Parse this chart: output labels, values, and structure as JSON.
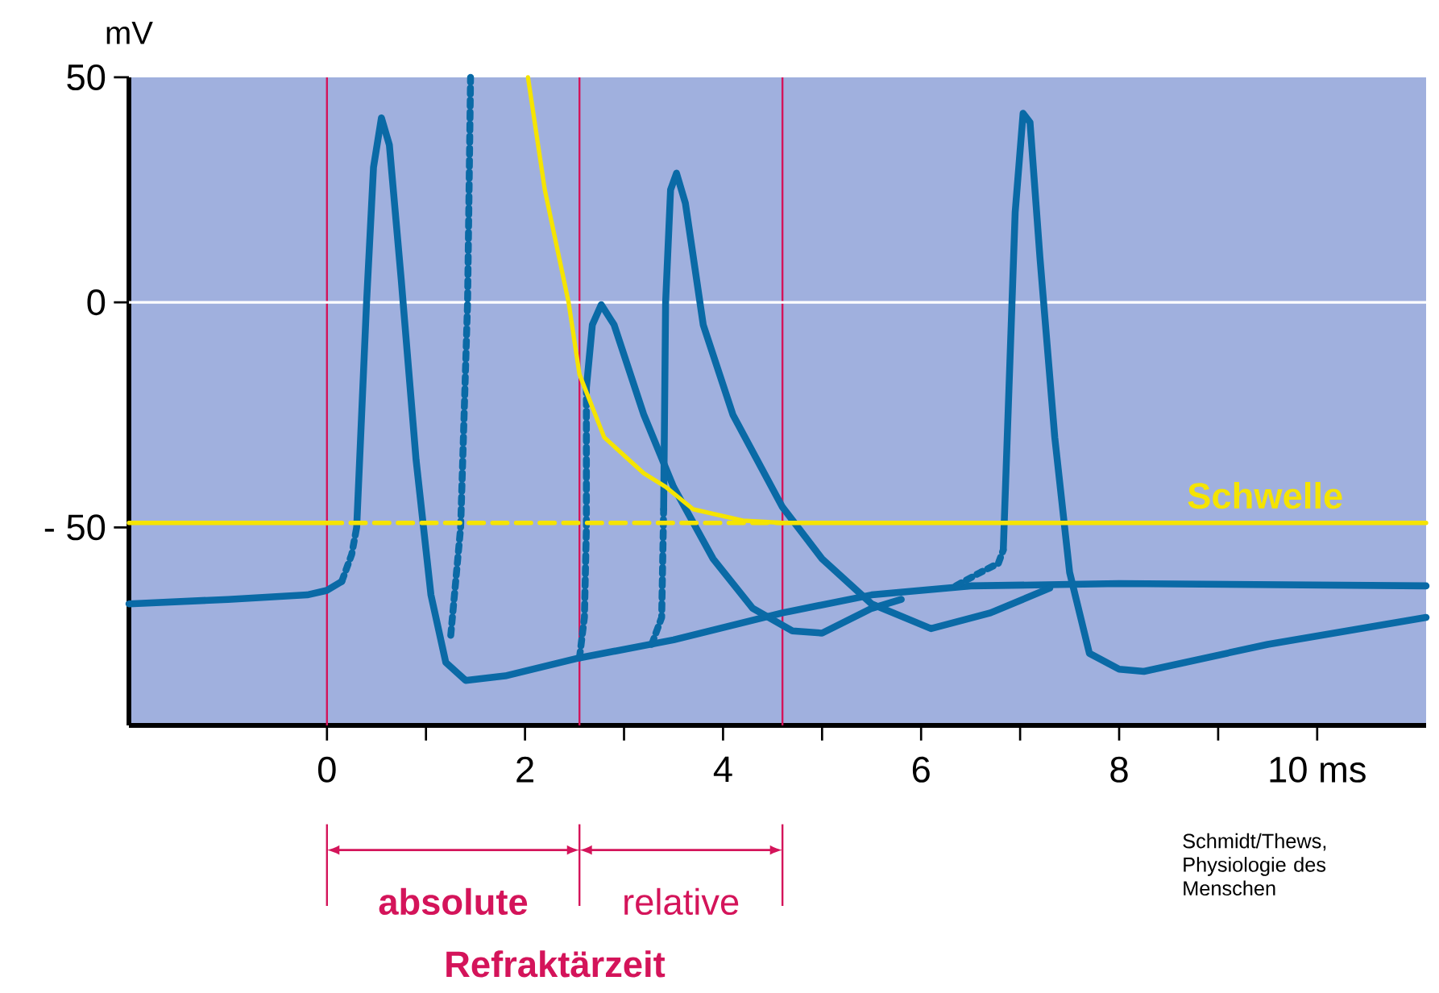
{
  "chart_data": {
    "type": "line",
    "ylabel": "mV",
    "xlim": [
      -2,
      11.1
    ],
    "ylim": [
      -94,
      50
    ],
    "xticks": [
      0,
      {
        "value": 1,
        "label": null
      },
      2,
      {
        "value": 3,
        "label": null
      },
      4,
      {
        "value": 5,
        "label": null
      },
      6,
      {
        "value": 7,
        "label": null
      },
      8,
      {
        "value": 9,
        "label": null
      },
      {
        "value": 10,
        "label": "10 ms"
      }
    ],
    "yticks": [
      50,
      0,
      {
        "value": -50,
        "label": "- 50"
      }
    ],
    "series": [
      {
        "color": "#0a6aa6",
        "line_style": "solid",
        "x": [
          -2,
          -1,
          -0.2,
          0,
          0.15
        ],
        "values": [
          -67,
          -66,
          -65,
          -64,
          -62
        ]
      },
      {
        "color": "#0a6aa6",
        "line_style": "dotted",
        "x": [
          0.15,
          0.25,
          0.3
        ],
        "values": [
          -62,
          -56,
          -50
        ]
      },
      {
        "color": "#0a6aa6",
        "line_style": "solid",
        "x": [
          0.3,
          0.4,
          0.47,
          0.55,
          0.63,
          0.75,
          0.9,
          1.05,
          1.2,
          1.4,
          1.8,
          2.55,
          3.5,
          4.6,
          5.5,
          6.5,
          8,
          11.1
        ],
        "values": [
          -50,
          0,
          30,
          41,
          35,
          5,
          -35,
          -65,
          -80,
          -84,
          -83,
          -79,
          -75,
          -69,
          -65,
          -63,
          -62.5,
          -63
        ]
      },
      {
        "color": "#0a6aa6",
        "line_style": "dotted",
        "x": [
          1.25,
          1.35,
          1.42,
          1.45
        ],
        "values": [
          -74,
          -50,
          0,
          50
        ]
      },
      {
        "color": "#0a6aa6",
        "line_style": "dotted",
        "x": [
          2.55,
          2.6,
          2.62,
          2.62
        ],
        "values": [
          -79,
          -70,
          -50,
          -19
        ]
      },
      {
        "color": "#0a6aa6",
        "line_style": "solid",
        "x": [
          2.62,
          2.68,
          2.77,
          2.9,
          3.2,
          3.5,
          3.9,
          4.3,
          4.7,
          5.0,
          5.5,
          5.8
        ],
        "values": [
          -19,
          -5,
          -0.5,
          -5,
          -25,
          -41,
          -57,
          -68,
          -73,
          -73.5,
          -68,
          -66
        ]
      },
      {
        "color": "#0a6aa6",
        "line_style": "dotted",
        "x": [
          3.28,
          3.38,
          3.4
        ],
        "values": [
          -76,
          -70,
          -46
        ]
      },
      {
        "color": "#0a6aa6",
        "line_style": "solid",
        "x": [
          3.4,
          3.42,
          3.47,
          3.53,
          3.62,
          3.8,
          4.1,
          4.6,
          5.0,
          5.5,
          6.1,
          6.7,
          7.3
        ],
        "values": [
          -46,
          0,
          25,
          28.7,
          22,
          -5,
          -25,
          -45.5,
          -57,
          -67,
          -72.5,
          -69,
          -63.5
        ]
      },
      {
        "color": "#0a6aa6",
        "line_style": "dotted",
        "x": [
          6.35,
          6.6,
          6.78,
          6.83
        ],
        "values": [
          -63,
          -60,
          -58,
          -55
        ]
      },
      {
        "color": "#0a6aa6",
        "line_style": "solid",
        "x": [
          6.83,
          6.87,
          6.95,
          7.03,
          7.1,
          7.2,
          7.35,
          7.5,
          7.7,
          8.0,
          8.25,
          9.5,
          11.1
        ],
        "values": [
          -55,
          -30,
          20,
          42,
          40,
          10,
          -30,
          -60,
          -78,
          -81.5,
          -82,
          -76,
          -70
        ]
      },
      {
        "color": "#f5e400",
        "line_style": "solid",
        "x": [
          -2,
          0
        ],
        "values": [
          -49,
          -49
        ]
      },
      {
        "color": "#f5e400",
        "line_style": "dashed",
        "x": [
          0,
          4.6
        ],
        "values": [
          -49,
          -49
        ]
      },
      {
        "name": "Schwelle",
        "color": "#f5e400",
        "line_style": "solid",
        "x": [
          2.03,
          2.2,
          2.44,
          2.55,
          2.8,
          3.2,
          3.42,
          3.7,
          4.2,
          4.6,
          11.1
        ],
        "values": [
          50,
          25,
          0,
          -16,
          -30,
          -38,
          -41,
          -46,
          -48.5,
          -49,
          -49
        ]
      }
    ],
    "ref_lines": [
      {
        "axis": "x",
        "value": 0,
        "color": "#d4145a"
      },
      {
        "axis": "x",
        "value": 2.55,
        "color": "#d4145a"
      },
      {
        "axis": "x",
        "value": 4.6,
        "color": "#d4145a"
      },
      {
        "axis": "y",
        "value": 0,
        "color": "#ffffff"
      }
    ],
    "annotations": [
      "**absolute**",
      "relative",
      "**Refraktärzeit**",
      "Schmidt/Thews, Physiologie des Menschen"
    ]
  }
}
